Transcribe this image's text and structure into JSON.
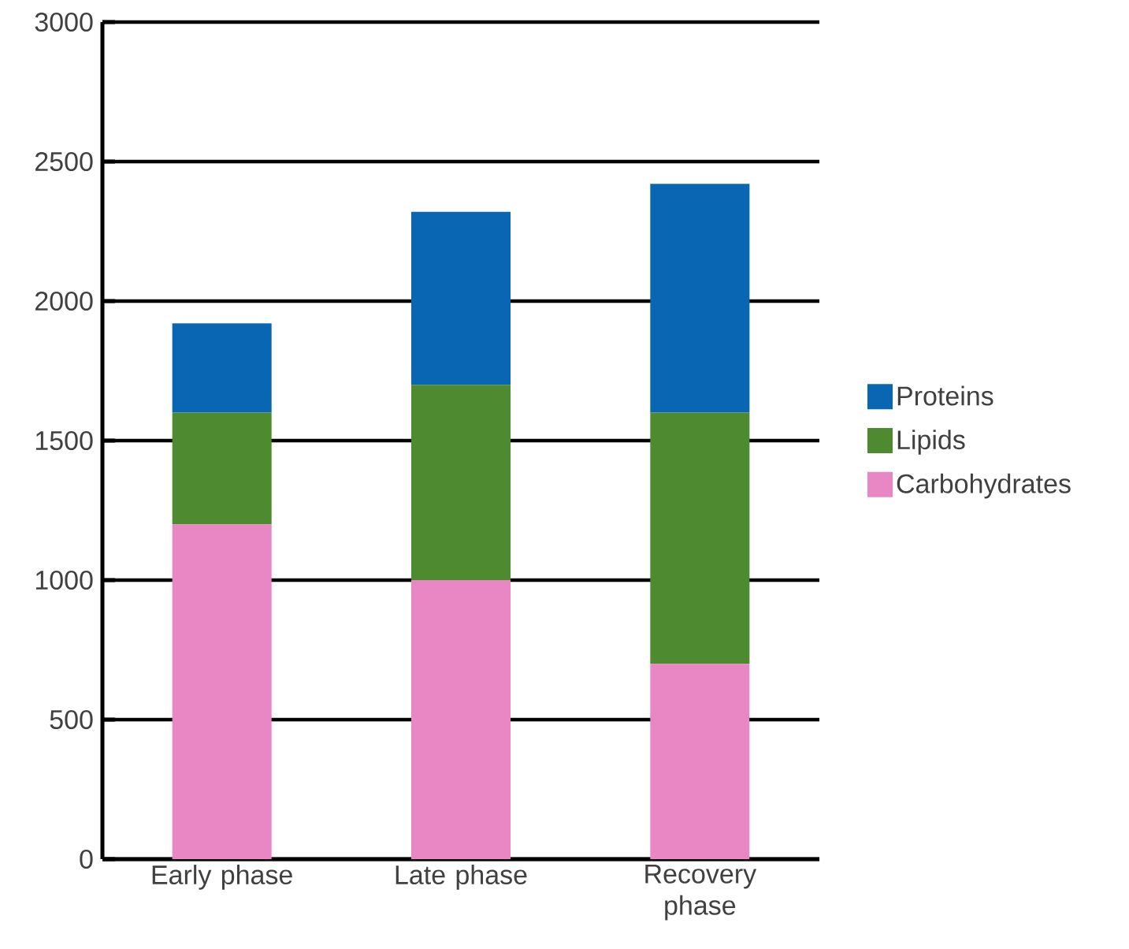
{
  "chart_data": {
    "type": "bar",
    "stacked": true,
    "categories": [
      "Early phase",
      "Late phase",
      "Recovery phase"
    ],
    "series": [
      {
        "name": "Carbohydrates",
        "color": "#e987c5",
        "values": [
          1200,
          1000,
          700
        ]
      },
      {
        "name": "Lipids",
        "color": "#4e8a30",
        "values": [
          400,
          700,
          900
        ]
      },
      {
        "name": "Proteins",
        "color": "#0866b2",
        "values": [
          320,
          620,
          820
        ]
      }
    ],
    "ylim": [
      0,
      3000
    ],
    "yticks": [
      0,
      500,
      1000,
      1500,
      2000,
      2500,
      3000
    ],
    "grid": "y",
    "legend": "right"
  }
}
